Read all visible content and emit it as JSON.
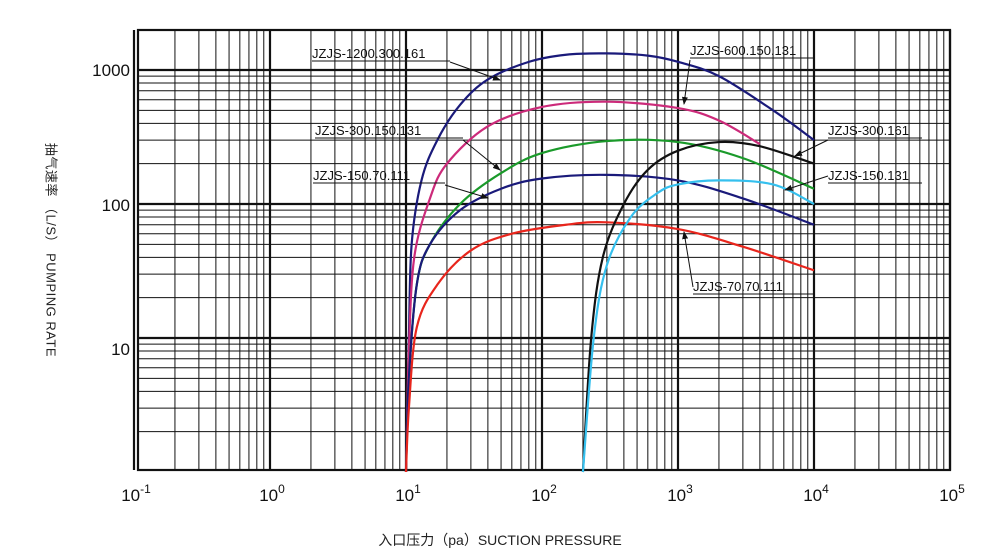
{
  "chart_data": {
    "type": "line",
    "xlabel": "入口压力（pa）SUCTION PRESSURE",
    "ylabel": "抽气速率 （L/S） PUMPING RATE",
    "x_scale": "log",
    "y_scale": "log",
    "xlim": [
      0.1,
      100000
    ],
    "ylim": [
      1,
      2000
    ],
    "grid": true,
    "x_ticks": [
      {
        "base": "10",
        "exp": "-1"
      },
      {
        "base": "10",
        "exp": "0"
      },
      {
        "base": "10",
        "exp": "1"
      },
      {
        "base": "10",
        "exp": "2"
      },
      {
        "base": "10",
        "exp": "3"
      },
      {
        "base": "10",
        "exp": "4"
      },
      {
        "base": "10",
        "exp": "5"
      }
    ],
    "y_ticks": [
      "1000",
      "100",
      "10"
    ],
    "series": [
      {
        "name": "JZJS-1200.300.161",
        "color": "#1a1a7a",
        "points": [
          [
            10,
            1
          ],
          [
            10.5,
            10
          ],
          [
            11,
            50
          ],
          [
            13,
            150
          ],
          [
            17,
            300
          ],
          [
            25,
            550
          ],
          [
            40,
            850
          ],
          [
            80,
            1150
          ],
          [
            150,
            1300
          ],
          [
            300,
            1330
          ],
          [
            600,
            1280
          ],
          [
            1000,
            1150
          ],
          [
            2000,
            900
          ],
          [
            5000,
            500
          ],
          [
            10000,
            300
          ]
        ]
      },
      {
        "name": "JZJS-600.150.131",
        "color": "#cc2a7a",
        "points": [
          [
            10,
            1
          ],
          [
            10.5,
            8
          ],
          [
            11.5,
            40
          ],
          [
            15,
            110
          ],
          [
            20,
            200
          ],
          [
            40,
            380
          ],
          [
            100,
            530
          ],
          [
            300,
            580
          ],
          [
            1000,
            520
          ],
          [
            2000,
            420
          ],
          [
            4000,
            280
          ]
        ]
      },
      {
        "name": "JZJS-300.150.131",
        "color": "#1a9a2a",
        "points": [
          [
            10,
            1
          ],
          [
            10.5,
            5
          ],
          [
            12,
            25
          ],
          [
            15,
            50
          ],
          [
            25,
            100
          ],
          [
            50,
            170
          ],
          [
            100,
            240
          ],
          [
            300,
            295
          ],
          [
            1000,
            290
          ],
          [
            3000,
            220
          ],
          [
            10000,
            130
          ]
        ]
      },
      {
        "name": "JZJS-150.70.111",
        "color": "#1a1a7a",
        "points": [
          [
            10,
            1
          ],
          [
            10.5,
            5
          ],
          [
            12,
            25
          ],
          [
            15,
            50
          ],
          [
            25,
            90
          ],
          [
            50,
            130
          ],
          [
            100,
            155
          ],
          [
            300,
            165
          ],
          [
            1000,
            150
          ],
          [
            3000,
            110
          ],
          [
            10000,
            70
          ]
        ]
      },
      {
        "name": "JZJS-70.70.111",
        "color": "#e8251c",
        "points": [
          [
            10,
            1
          ],
          [
            10.5,
            3
          ],
          [
            12,
            12
          ],
          [
            17,
            25
          ],
          [
            30,
            45
          ],
          [
            60,
            60
          ],
          [
            150,
            70
          ],
          [
            300,
            73
          ],
          [
            1000,
            65
          ],
          [
            3000,
            48
          ],
          [
            10000,
            32
          ]
        ]
      },
      {
        "name": "JZJS-300.161",
        "color": "#111111",
        "points": [
          [
            200,
            1
          ],
          [
            230,
            10
          ],
          [
            280,
            40
          ],
          [
            400,
            100
          ],
          [
            600,
            180
          ],
          [
            1000,
            250
          ],
          [
            2000,
            290
          ],
          [
            4000,
            270
          ],
          [
            10000,
            200
          ]
        ]
      },
      {
        "name": "JZJS-150.131",
        "color": "#35c0ee",
        "points": [
          [
            200,
            1
          ],
          [
            240,
            10
          ],
          [
            300,
            35
          ],
          [
            450,
            80
          ],
          [
            700,
            120
          ],
          [
            1000,
            140
          ],
          [
            2000,
            150
          ],
          [
            5000,
            140
          ],
          [
            10000,
            100
          ]
        ]
      }
    ]
  }
}
